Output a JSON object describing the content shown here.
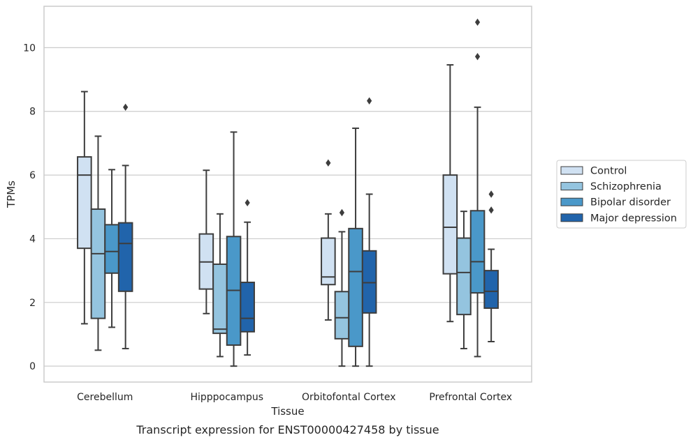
{
  "chart_data": {
    "type": "box",
    "xlabel": "Tissue",
    "ylabel": "TPMs",
    "caption": "Transcript expression for ENST00000427458 by tissue",
    "ylim": [
      -0.5,
      11.3
    ],
    "yticks": [
      "0",
      "2",
      "4",
      "6",
      "8",
      "10"
    ],
    "categories": [
      "Cerebellum",
      "Hipppocampus",
      "Orbitofontal Cortex",
      "Prefrontal Cortex"
    ],
    "grid": "horizontal",
    "legend_position": "right",
    "series": [
      {
        "name": "Control",
        "color": "#d0e1f2",
        "boxes": [
          {
            "min": 1.33,
            "q1": 3.7,
            "median": 6.0,
            "q3": 6.57,
            "max": 8.62,
            "outliers": []
          },
          {
            "min": 1.65,
            "q1": 2.42,
            "median": 3.27,
            "q3": 4.15,
            "max": 6.15,
            "outliers": []
          },
          {
            "min": 1.45,
            "q1": 2.56,
            "median": 2.8,
            "q3": 4.02,
            "max": 4.78,
            "outliers": [
              6.38
            ]
          },
          {
            "min": 1.4,
            "q1": 2.9,
            "median": 4.36,
            "q3": 6.0,
            "max": 9.46,
            "outliers": []
          }
        ]
      },
      {
        "name": "Schizophrenia",
        "color": "#94c4df",
        "boxes": [
          {
            "min": 0.5,
            "q1": 1.5,
            "median": 3.53,
            "q3": 4.93,
            "max": 7.22,
            "outliers": []
          },
          {
            "min": 0.3,
            "q1": 1.03,
            "median": 1.16,
            "q3": 3.2,
            "max": 4.78,
            "outliers": []
          },
          {
            "min": 0.0,
            "q1": 0.86,
            "median": 1.52,
            "q3": 2.34,
            "max": 4.22,
            "outliers": [
              4.82
            ]
          },
          {
            "min": 0.55,
            "q1": 1.62,
            "median": 2.94,
            "q3": 4.02,
            "max": 4.86,
            "outliers": []
          }
        ]
      },
      {
        "name": "Bipolar disorder",
        "color": "#4a98c9",
        "boxes": [
          {
            "min": 1.22,
            "q1": 2.92,
            "median": 3.6,
            "q3": 4.44,
            "max": 6.17,
            "outliers": []
          },
          {
            "min": 0.0,
            "q1": 0.66,
            "median": 2.38,
            "q3": 4.07,
            "max": 7.35,
            "outliers": []
          },
          {
            "min": 0.0,
            "q1": 0.62,
            "median": 2.97,
            "q3": 4.32,
            "max": 7.47,
            "outliers": []
          },
          {
            "min": 0.3,
            "q1": 2.3,
            "median": 3.28,
            "q3": 4.88,
            "max": 8.13,
            "outliers": [
              9.72,
              10.8
            ]
          }
        ]
      },
      {
        "name": "Major depression",
        "color": "#2164ab",
        "boxes": [
          {
            "min": 0.55,
            "q1": 2.35,
            "median": 3.85,
            "q3": 4.5,
            "max": 6.3,
            "outliers": [
              8.13
            ]
          },
          {
            "min": 0.35,
            "q1": 1.08,
            "median": 1.5,
            "q3": 2.63,
            "max": 4.52,
            "outliers": [
              5.13
            ]
          },
          {
            "min": 0.0,
            "q1": 1.67,
            "median": 2.62,
            "q3": 3.62,
            "max": 5.4,
            "outliers": [
              8.33
            ]
          },
          {
            "min": 0.77,
            "q1": 1.82,
            "median": 2.35,
            "q3": 3.0,
            "max": 3.67,
            "outliers": [
              4.9,
              5.4
            ]
          }
        ]
      }
    ]
  }
}
